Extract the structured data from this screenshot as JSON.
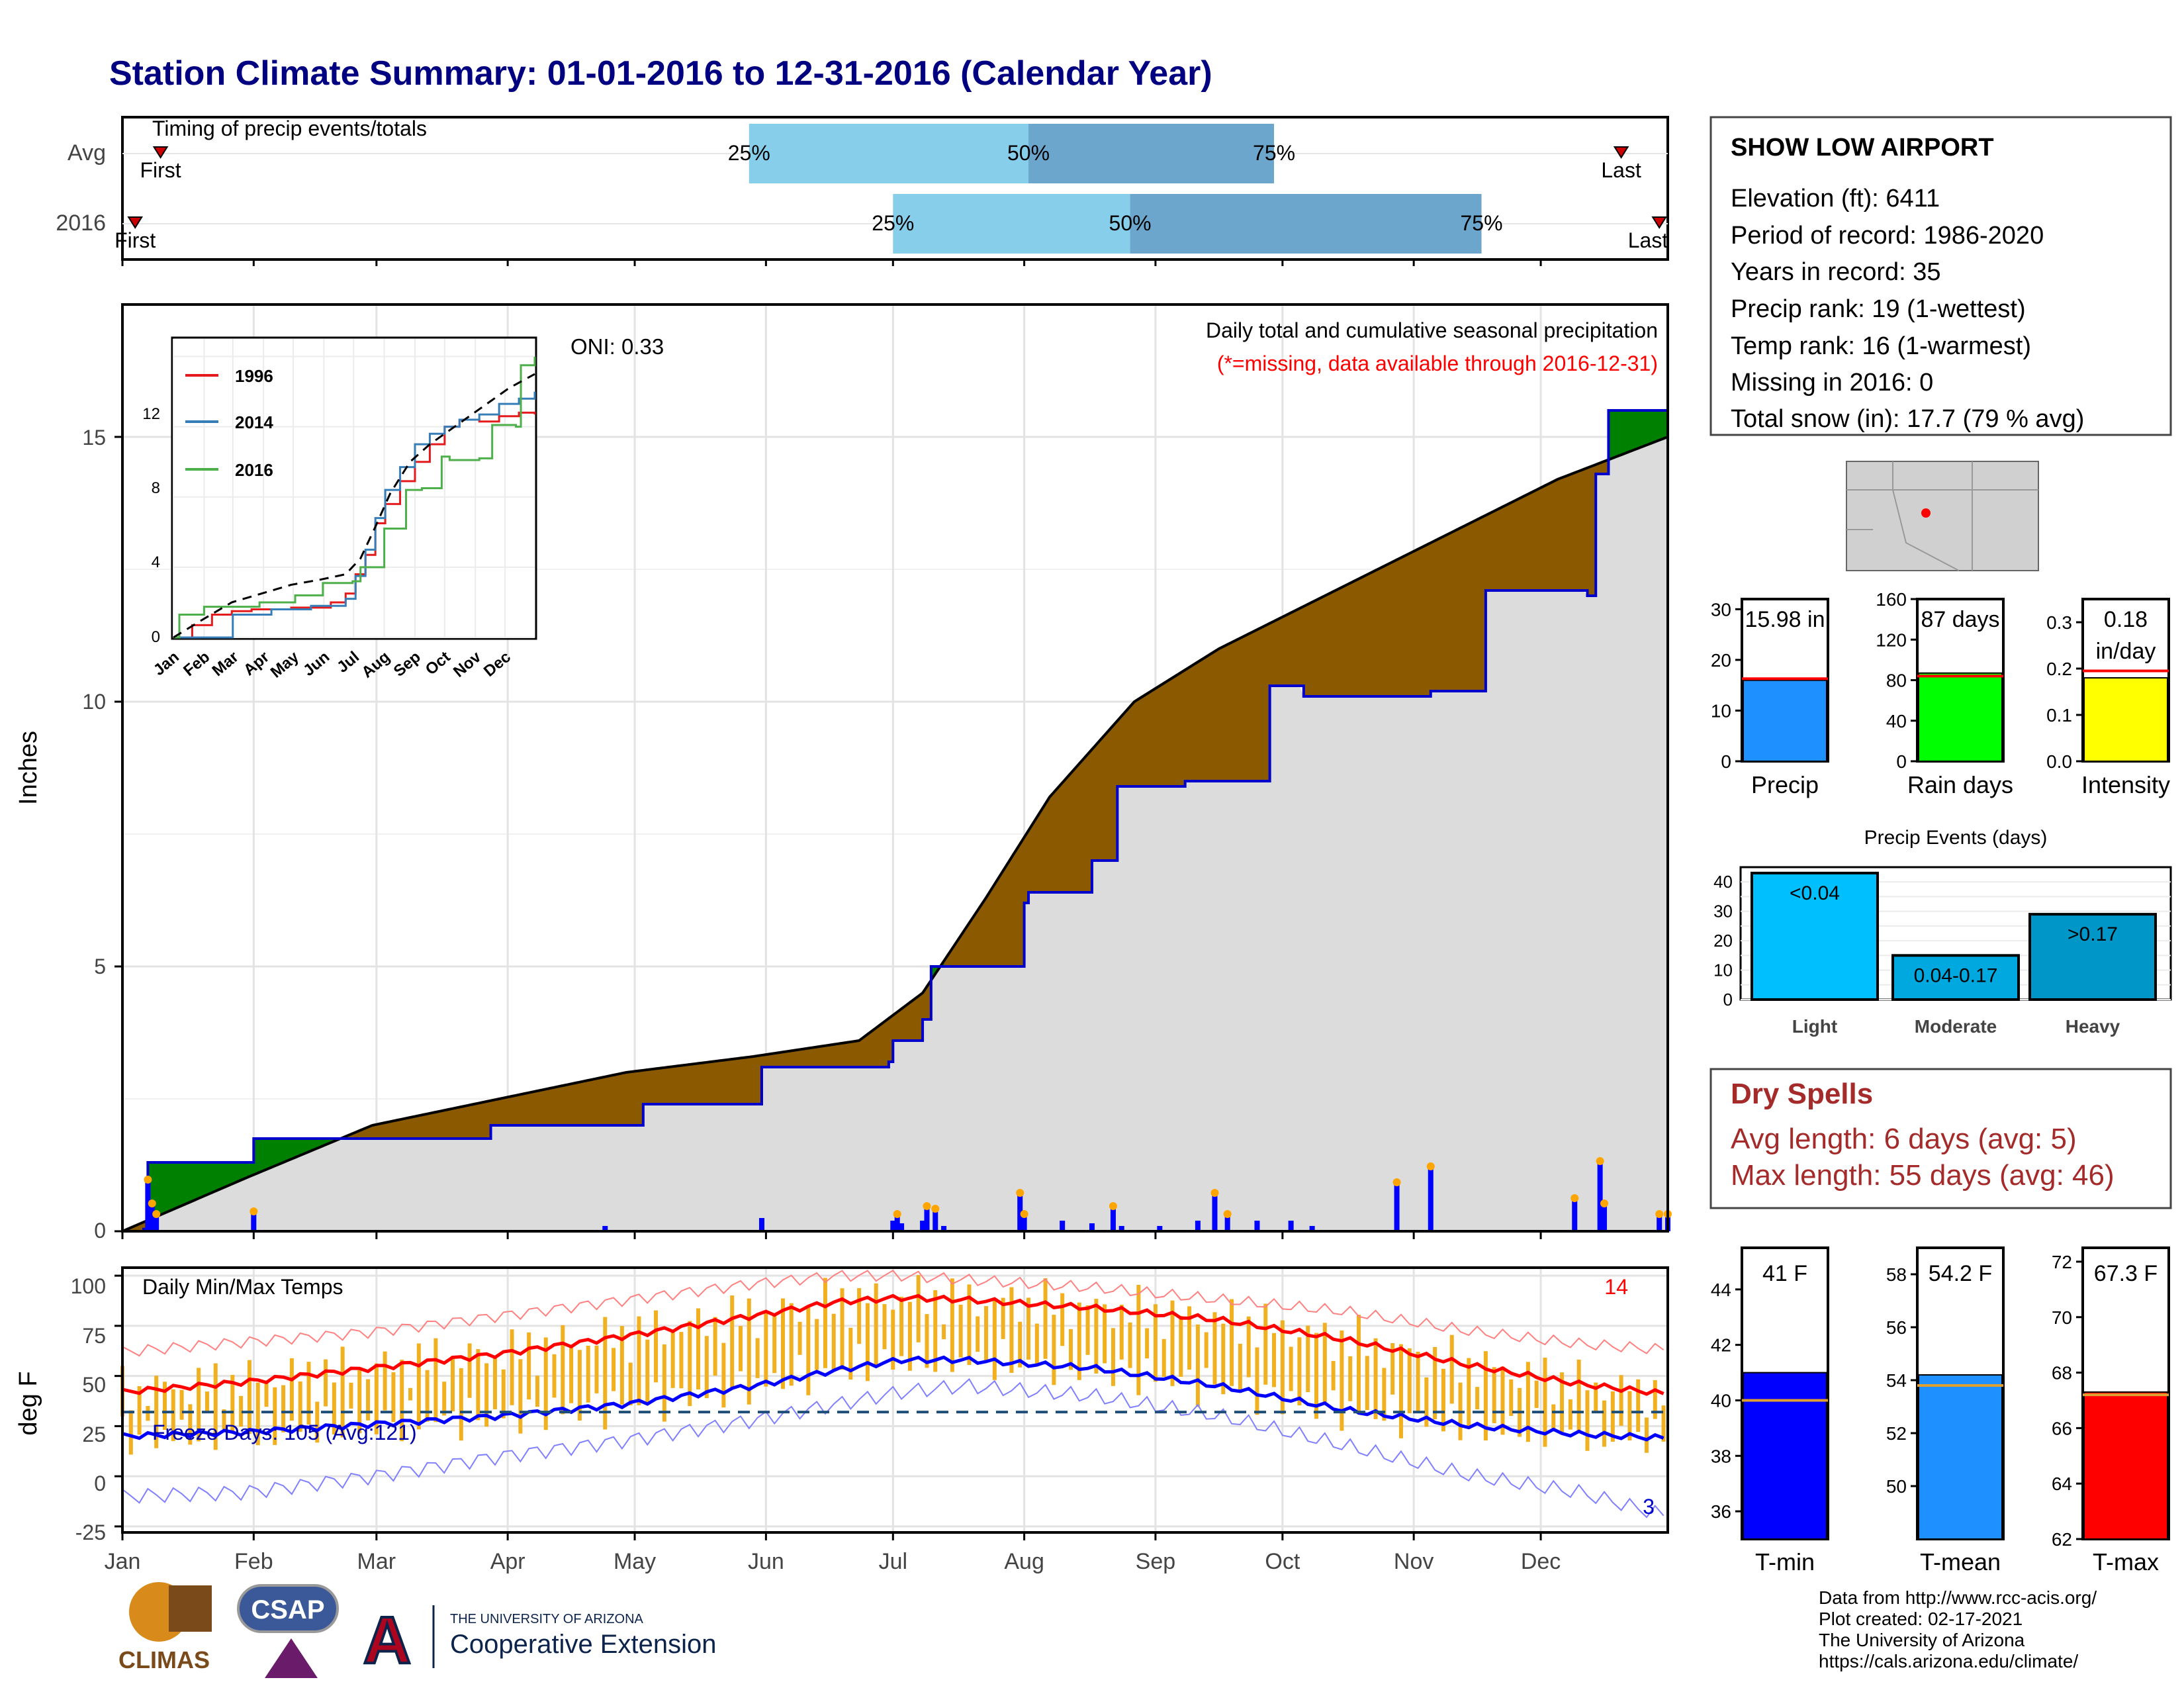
{
  "title": "Station Climate Summary: 01-01-2016 to 12-31-2016 (Calendar Year)",
  "colors": {
    "title": "#000080",
    "precip_bar": "#0000ff",
    "above_green": "#008000",
    "below_brown": "#8b5a00",
    "gray_fill": "#dcdcdc",
    "avg_line": "#0000cc",
    "tmax_line": "#ff0000",
    "tmin_line": "#0000ff",
    "range_bar": "#f0b020"
  },
  "timing": {
    "label": "Timing of precip events/totals",
    "rows": [
      {
        "name": "Avg",
        "first_label": "First",
        "last_label": "Last",
        "q25": "25%",
        "q50": "50%",
        "q75": "75%",
        "first_doy": 10,
        "p25_doy": 149,
        "p50_doy": 215,
        "p75_doy": 273,
        "last_doy": 355
      },
      {
        "name": "2016",
        "first_label": "First",
        "last_label": "Last",
        "q25": "25%",
        "q50": "50%",
        "q75": "75%",
        "first_doy": 4,
        "p25_doy": 183,
        "p50_doy": 239,
        "p75_doy": 322,
        "last_doy": 364
      }
    ]
  },
  "info": {
    "station": "SHOW LOW AIRPORT",
    "lines": [
      "Elevation (ft): 6411",
      "Period of record: 1986-2020",
      "Years in record: 35",
      "Precip rank: 19 (1-wettest)",
      "Temp rank: 16 (1-warmest)",
      "Missing in 2016: 0",
      "Total snow (in): 17.7 (79 % avg)"
    ]
  },
  "precip_panel": {
    "ylabel": "Inches",
    "note1": "Daily total and cumulative seasonal precipitation",
    "note2": "(*=missing, data available through 2016-12-31)",
    "oni": "ONI: 0.33",
    "yticks": [
      "0",
      "5",
      "10",
      "15"
    ]
  },
  "inset": {
    "legend": [
      "1996",
      "2014",
      "2016"
    ],
    "yticks": [
      "0",
      "4",
      "8",
      "12"
    ],
    "months": [
      "Jan",
      "Feb",
      "Mar",
      "Apr",
      "May",
      "Jun",
      "Jul",
      "Aug",
      "Sep",
      "Oct",
      "Nov",
      "Dec"
    ]
  },
  "temp_panel": {
    "ylabel": "deg F",
    "label": "Daily Min/Max Temps",
    "freeze": "Freeze Days: 105 (Avg:121)",
    "count_hot": "14",
    "count_cold": "3",
    "yticks": [
      "-25",
      "0",
      "25",
      "50",
      "75",
      "100"
    ]
  },
  "months": [
    "Jan",
    "Feb",
    "Mar",
    "Apr",
    "May",
    "Jun",
    "Jul",
    "Aug",
    "Sep",
    "Oct",
    "Nov",
    "Dec"
  ],
  "mini_bars": [
    {
      "label": "Precip",
      "value_text": "15.98 in",
      "value": 15.98,
      "avg": 16.3,
      "ymax": 32,
      "ticks": [
        "0",
        "10",
        "20",
        "30"
      ],
      "color": "#1e90ff"
    },
    {
      "label": "Rain days",
      "value_text": "87 days",
      "value": 87,
      "avg": 84,
      "ymax": 160,
      "ticks": [
        "0",
        "40",
        "80",
        "120",
        "160"
      ],
      "color": "#00ff00"
    },
    {
      "label": "Intensity",
      "value_text": "0.18 in/day",
      "value": 0.18,
      "avg": 0.195,
      "ymax": 0.35,
      "ticks": [
        "0.0",
        "0.1",
        "0.2",
        "0.3"
      ],
      "color": "#ffff00"
    }
  ],
  "events": {
    "title": "Precip Events (days)",
    "yticks": [
      "0",
      "10",
      "20",
      "30",
      "40"
    ],
    "bars": [
      {
        "label": "Light",
        "text": "<0.04",
        "value": 43,
        "color": "#00bfff"
      },
      {
        "label": "Moderate",
        "text": "0.04-0.17",
        "value": 15,
        "color": "#00a8e0"
      },
      {
        "label": "Heavy",
        "text": ">0.17",
        "value": 29,
        "color": "#0096c8"
      }
    ]
  },
  "dry_spells": {
    "title": "Dry Spells",
    "lines": [
      "Avg length: 6 days (avg: 5)",
      "Max length: 55 days (avg: 46)"
    ]
  },
  "temp_bars": [
    {
      "label": "T-min",
      "value_text": "41 F",
      "value": 41,
      "avg": 40,
      "ylim": [
        35,
        45.5
      ],
      "ticks": [
        "36",
        "38",
        "40",
        "42",
        "44"
      ],
      "color": "#0000ff"
    },
    {
      "label": "T-mean",
      "value_text": "54.2 F",
      "value": 54.2,
      "avg": 53.8,
      "ylim": [
        48,
        59
      ],
      "ticks": [
        "50",
        "52",
        "54",
        "56",
        "58"
      ],
      "color": "#1e90ff"
    },
    {
      "label": "T-max",
      "value_text": "67.3 F",
      "value": 67.3,
      "avg": 67.2,
      "ylim": [
        62,
        72.5
      ],
      "ticks": [
        "62",
        "64",
        "66",
        "68",
        "70",
        "72"
      ],
      "color": "#ff0000"
    }
  ],
  "footer": {
    "lines": [
      "Data from http://www.rcc-acis.org/",
      "Plot created: 02-17-2021",
      "The University of Arizona",
      "https://cals.arizona.edu/climate/"
    ],
    "logo1": "CLIMAS",
    "logo2": "CSAP",
    "logo3_small": "THE UNIVERSITY OF ARIZONA",
    "logo3_big": "Cooperative Extension"
  },
  "chart_data": [
    {
      "type": "area",
      "title": "Daily total and cumulative seasonal precipitation",
      "ylabel": "Inches",
      "ylim": [
        0,
        17.5
      ],
      "x_label_months": [
        "Jan",
        "Feb",
        "Mar",
        "Apr",
        "May",
        "Jun",
        "Jul",
        "Aug",
        "Sep",
        "Oct",
        "Nov",
        "Dec"
      ],
      "series": [
        {
          "name": "2016",
          "x": [
            1,
            6,
            7,
            32,
            53,
            88,
            124,
            152,
            163,
            182,
            183,
            190,
            192,
            214,
            215,
            230,
            236,
            238,
            252,
            272,
            280,
            310,
            323,
            347,
            349,
            352,
            366
          ],
          "values": [
            0,
            0.04,
            1.3,
            1.75,
            1.75,
            2.0,
            2.4,
            3.1,
            3.1,
            3.2,
            3.6,
            4.0,
            5.0,
            6.2,
            6.4,
            7.0,
            8.4,
            8.4,
            8.5,
            10.3,
            10.1,
            10.2,
            12.1,
            12.0,
            14.3,
            15.5,
            15.98
          ]
        }
      ],
      "daily_precip": {
        "x": [
          7,
          8,
          9,
          32,
          115,
          152,
          183,
          184,
          185,
          190,
          191,
          193,
          195,
          213,
          214,
          223,
          230,
          235,
          237,
          246,
          255,
          259,
          262,
          269,
          277,
          282,
          302,
          310,
          344,
          350,
          351,
          364,
          366
        ],
        "values": [
          0.95,
          0.5,
          0.3,
          0.35,
          0.1,
          0.25,
          0.2,
          0.3,
          0.15,
          0.2,
          0.45,
          0.4,
          0.1,
          0.7,
          0.3,
          0.2,
          0.15,
          0.45,
          0.1,
          0.1,
          0.2,
          0.7,
          0.3,
          0.2,
          0.2,
          0.1,
          0.9,
          1.2,
          0.6,
          1.3,
          0.5,
          0.3,
          0.3
        ]
      }
    },
    {
      "type": "line",
      "title": "",
      "ylim": [
        0,
        17
      ],
      "series": [
        {
          "name": "1996",
          "x": [
            1,
            20,
            40,
            60,
            80,
            100,
            120,
            140,
            160,
            175,
            185,
            195,
            205,
            215,
            230,
            245,
            260,
            275,
            290,
            310,
            330,
            350,
            366
          ],
          "values": [
            0,
            0.7,
            1.3,
            1.5,
            1.6,
            1.6,
            1.7,
            1.7,
            2.0,
            2.5,
            3.6,
            4.7,
            6.5,
            7.6,
            8.9,
            10.0,
            11.0,
            12.0,
            12.4,
            12.3,
            12.6,
            12.8,
            12.7
          ]
        },
        {
          "name": "2014",
          "x": [
            1,
            60,
            61,
            100,
            140,
            175,
            185,
            195,
            205,
            215,
            230,
            245,
            260,
            275,
            290,
            310,
            330,
            350,
            366
          ],
          "values": [
            0,
            0,
            1.3,
            1.6,
            1.8,
            2.2,
            3.5,
            5.0,
            6.8,
            8.4,
            9.7,
            11.0,
            11.6,
            12.0,
            12.4,
            12.7,
            13.3,
            13.6,
            14.0
          ]
        },
        {
          "name": "2016",
          "x": [
            1,
            7,
            32,
            53,
            88,
            124,
            152,
            182,
            190,
            214,
            236,
            252,
            272,
            280,
            310,
            323,
            347,
            352,
            366
          ],
          "values": [
            0,
            1.3,
            1.75,
            1.75,
            2.0,
            2.4,
            3.1,
            3.2,
            4.0,
            6.2,
            8.4,
            8.5,
            10.3,
            10.1,
            10.2,
            12.1,
            12.0,
            15.5,
            15.98
          ]
        },
        {
          "name": "Avg",
          "x": [
            1,
            30,
            60,
            90,
            120,
            150,
            175,
            190,
            205,
            220,
            240,
            260,
            280,
            300,
            320,
            340,
            366
          ],
          "values": [
            0,
            1.0,
            2.0,
            2.5,
            3.0,
            3.3,
            3.6,
            4.5,
            6.3,
            8.2,
            10.0,
            11.0,
            11.8,
            12.6,
            13.4,
            14.2,
            15.0
          ]
        }
      ]
    },
    {
      "type": "line",
      "title": "Daily Min/Max Temps",
      "ylabel": "deg F",
      "ylim": [
        -28,
        104
      ],
      "series": [
        {
          "name": "Avg max",
          "x": [
            1,
            30,
            60,
            90,
            120,
            150,
            170,
            185,
            200,
            230,
            260,
            290,
            320,
            345,
            366
          ],
          "values": [
            42,
            47,
            54,
            61,
            70,
            80,
            87,
            89,
            88,
            84,
            78,
            68,
            55,
            46,
            41
          ]
        },
        {
          "name": "Avg min",
          "x": [
            1,
            30,
            60,
            90,
            120,
            150,
            170,
            185,
            200,
            230,
            260,
            290,
            320,
            345,
            366
          ],
          "values": [
            20,
            22,
            26,
            30,
            36,
            45,
            53,
            58,
            58,
            54,
            45,
            33,
            25,
            21,
            19
          ]
        },
        {
          "name": "Record max",
          "x": [
            1,
            30,
            60,
            90,
            120,
            150,
            170,
            185,
            200,
            230,
            260,
            290,
            320,
            345,
            366
          ],
          "values": [
            62,
            67,
            72,
            80,
            88,
            96,
            100,
            100,
            98,
            94,
            88,
            82,
            72,
            66,
            63
          ]
        },
        {
          "name": "Record min",
          "x": [
            1,
            30,
            60,
            90,
            120,
            150,
            170,
            185,
            200,
            230,
            260,
            290,
            320,
            345,
            366
          ],
          "values": [
            -10,
            -8,
            0,
            10,
            18,
            28,
            36,
            42,
            45,
            40,
            30,
            15,
            0,
            -8,
            -20
          ]
        }
      ]
    },
    {
      "type": "bar",
      "title": "",
      "categories": [
        "Precip",
        "Rain days",
        "Intensity"
      ],
      "values": [
        15.98,
        87,
        0.18
      ]
    },
    {
      "type": "bar",
      "title": "Precip Events (days)",
      "categories": [
        "Light",
        "Moderate",
        "Heavy"
      ],
      "values": [
        43,
        15,
        29
      ]
    },
    {
      "type": "bar",
      "title": "",
      "categories": [
        "T-min",
        "T-mean",
        "T-max"
      ],
      "values": [
        41,
        54.2,
        67.3
      ]
    }
  ]
}
